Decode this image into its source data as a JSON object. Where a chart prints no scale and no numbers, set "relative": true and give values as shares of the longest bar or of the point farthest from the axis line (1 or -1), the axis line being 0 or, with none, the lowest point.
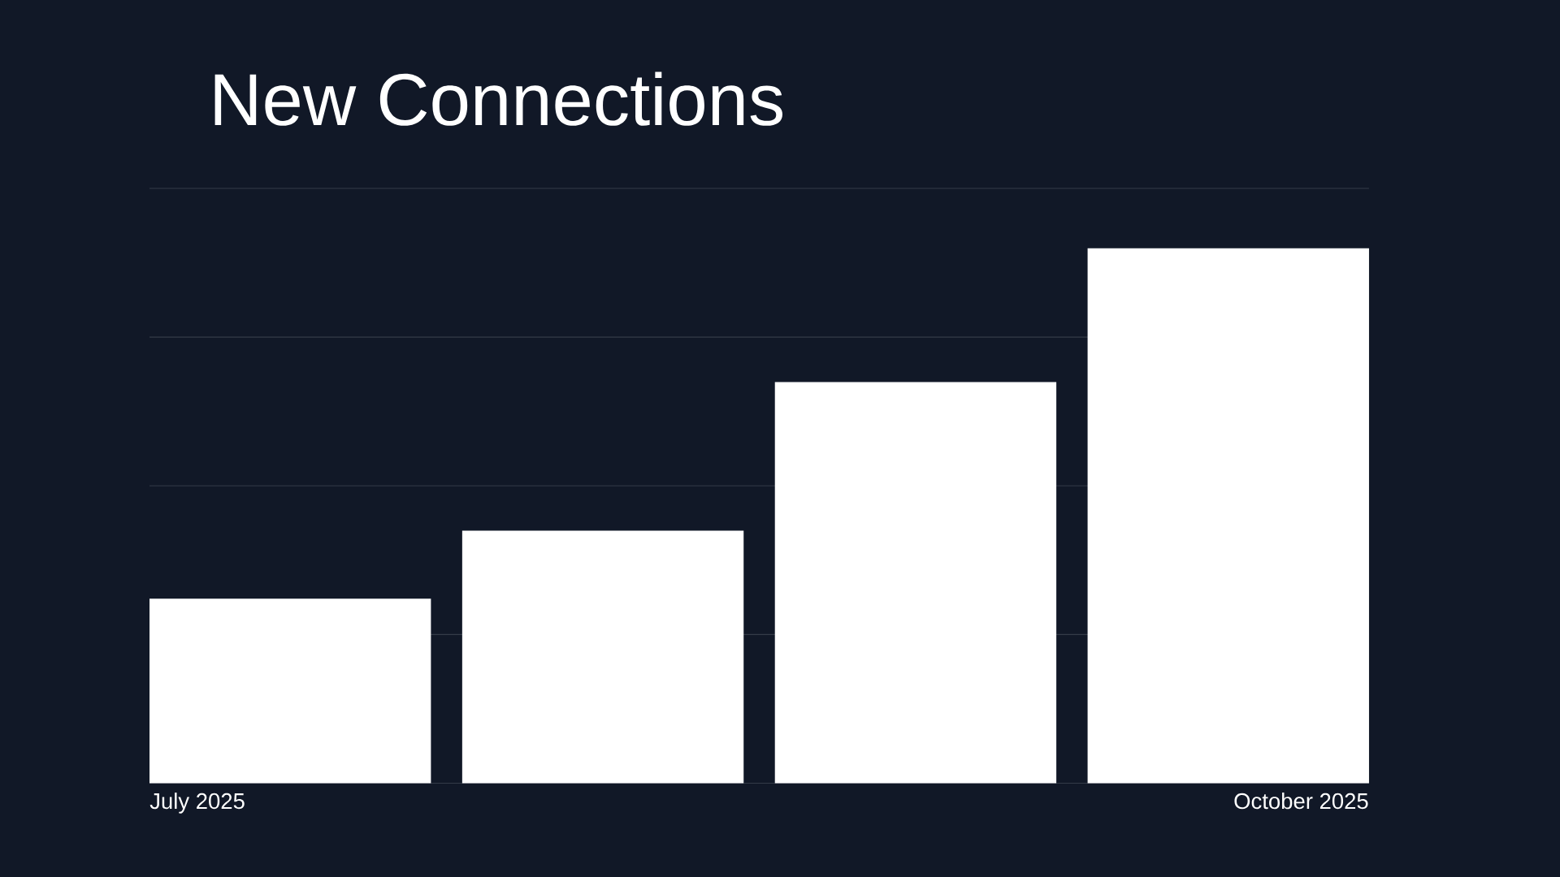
{
  "chart_data": {
    "type": "bar",
    "title": "New Connections",
    "categories": [
      "July 2025",
      null,
      null,
      "October 2025"
    ],
    "values": [
      0.345,
      0.472,
      0.75,
      1
    ],
    "color": "#ffffff",
    "relative": true,
    "grid": "y"
  }
}
